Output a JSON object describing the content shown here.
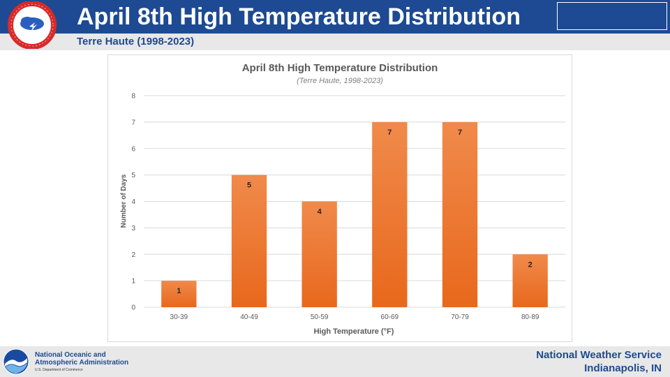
{
  "header": {
    "title": "April 8th High Temperature Distribution",
    "subtitle": "Terre Haute (1998-2023)"
  },
  "footer": {
    "agency_line1": "National Oceanic and",
    "agency_line2": "Atmospheric Administration",
    "department": "U.S. Department of Commerce",
    "org": "National Weather Service",
    "location": "Indianapolis, IN"
  },
  "colors": {
    "header_blue": "#1d4a92",
    "bar_top": "#f08a4b",
    "bar_bottom": "#e8681c",
    "grid": "#d9d9d9"
  },
  "icons": {
    "nws_logo": "nws-seal-icon",
    "noaa_logo": "noaa-bird-icon"
  },
  "chart_data": {
    "type": "bar",
    "title": "April 8th High Temperature Distribution",
    "subtitle": "(Terre Haute, 1998-2023)",
    "xlabel": "High Temperature (°F)",
    "ylabel": "Number of Days",
    "categories": [
      "30-39",
      "40-49",
      "50-59",
      "60-69",
      "70-79",
      "80-89"
    ],
    "values": [
      1,
      5,
      4,
      7,
      7,
      2
    ],
    "ylim": [
      0,
      8
    ],
    "yticks": [
      0,
      1,
      2,
      3,
      4,
      5,
      6,
      7,
      8
    ],
    "grid": true,
    "data_labels": true
  }
}
